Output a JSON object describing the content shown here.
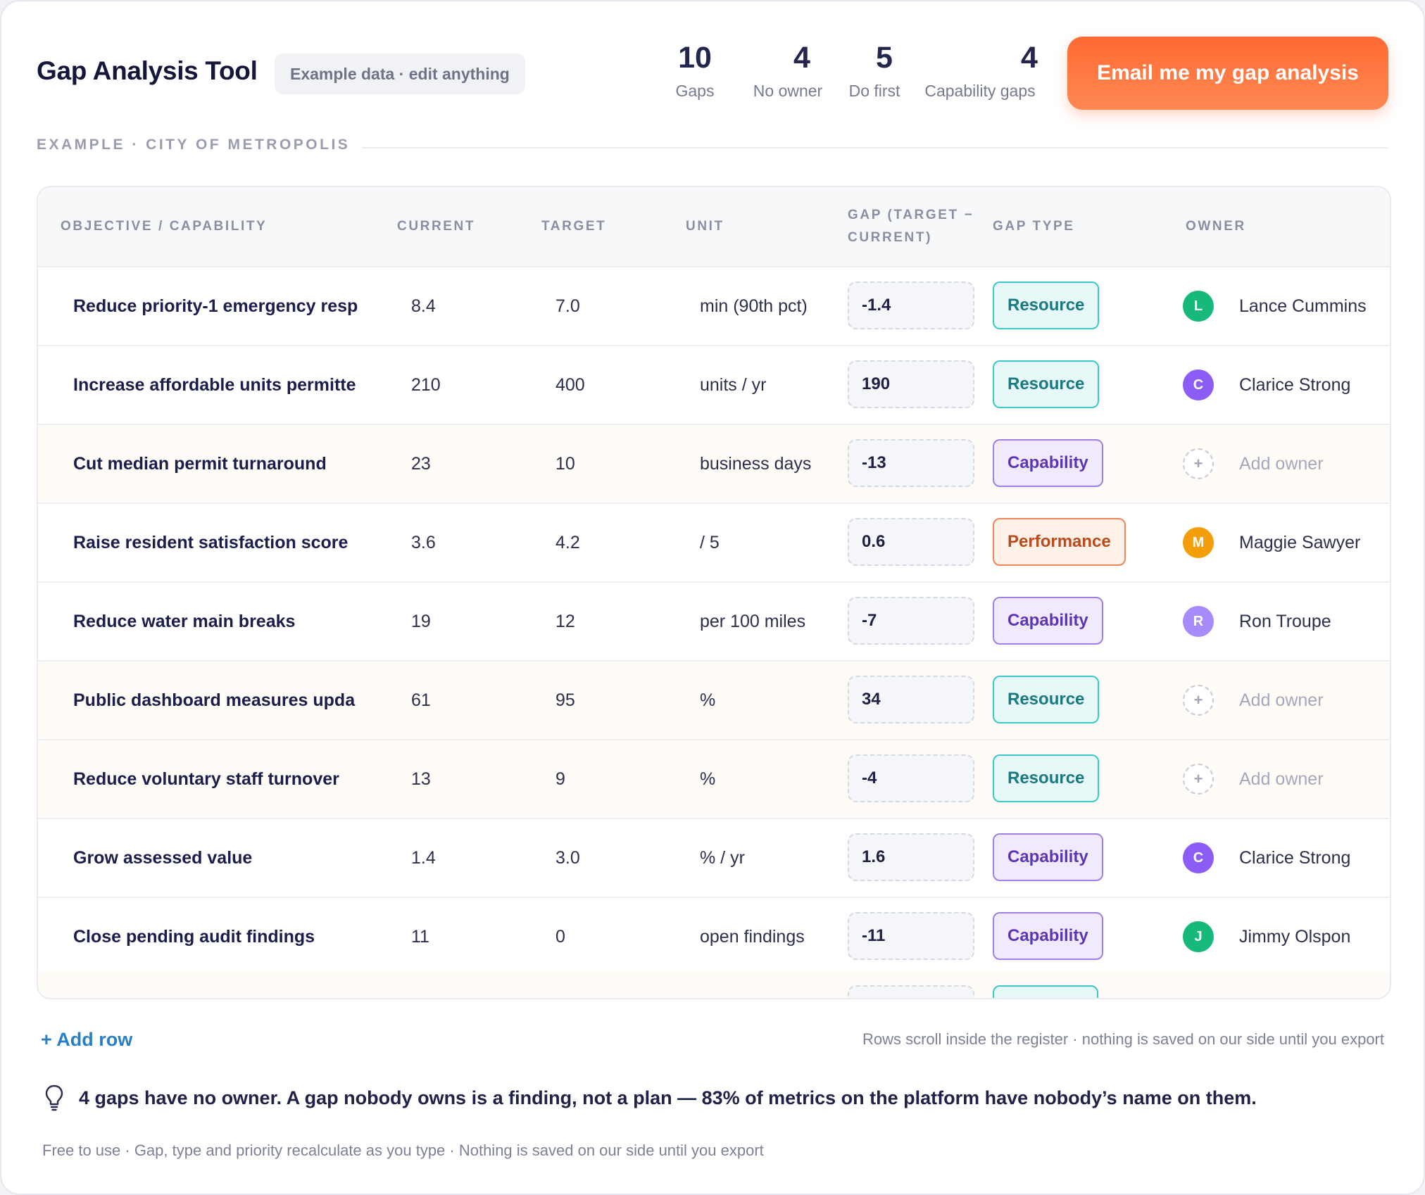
{
  "header": {
    "title": "Gap Analysis Tool",
    "pill": "Example data · edit anything",
    "stats": [
      {
        "num": "10",
        "label": "Gaps"
      },
      {
        "num": "4",
        "label": "No owner"
      },
      {
        "num": "5",
        "label": "Do first"
      },
      {
        "num": "4",
        "label": "Capability gaps"
      }
    ],
    "email_button": "Email me my gap analysis"
  },
  "section_label": "EXAMPLE · CITY OF METROPOLIS",
  "table": {
    "columns": {
      "objective": "OBJECTIVE / CAPABILITY",
      "current": "CURRENT",
      "target": "TARGET",
      "unit": "UNIT",
      "gap_line1": "GAP (TARGET −",
      "gap_line2": "CURRENT)",
      "gap_type": "GAP TYPE",
      "owner": "OWNER"
    },
    "rows": [
      {
        "objective": "Reduce priority-1 emergency resp",
        "current": "8.4",
        "target": "7.0",
        "unit": "min (90th pct)",
        "gap": "-1.4",
        "type": "Resource",
        "owner": "Lance Cummins",
        "initial": "L",
        "avatar_color": "#16b97a"
      },
      {
        "objective": "Increase affordable units permitte",
        "current": "210",
        "target": "400",
        "unit": "units / yr",
        "gap": "190",
        "type": "Resource",
        "owner": "Clarice Strong",
        "initial": "C",
        "avatar_color": "#8b5cf6"
      },
      {
        "objective": "Cut median permit turnaround",
        "current": "23",
        "target": "10",
        "unit": "business days",
        "gap": "-13",
        "type": "Capability",
        "owner": "Add owner",
        "initial": "+",
        "avatar_color": ""
      },
      {
        "objective": "Raise resident satisfaction score",
        "current": "3.6",
        "target": "4.2",
        "unit": "/ 5",
        "gap": "0.6",
        "type": "Performance",
        "owner": "Maggie Sawyer",
        "initial": "M",
        "avatar_color": "#f59e0b"
      },
      {
        "objective": "Reduce water main breaks",
        "current": "19",
        "target": "12",
        "unit": "per 100 miles",
        "gap": "-7",
        "type": "Capability",
        "owner": "Ron Troupe",
        "initial": "R",
        "avatar_color": "#a78bfa"
      },
      {
        "objective": "Public dashboard measures upda",
        "current": "61",
        "target": "95",
        "unit": "%",
        "gap": "34",
        "type": "Resource",
        "owner": "Add owner",
        "initial": "+",
        "avatar_color": ""
      },
      {
        "objective": "Reduce voluntary staff turnover",
        "current": "13",
        "target": "9",
        "unit": "%",
        "gap": "-4",
        "type": "Resource",
        "owner": "Add owner",
        "initial": "+",
        "avatar_color": ""
      },
      {
        "objective": "Grow assessed value",
        "current": "1.4",
        "target": "3.0",
        "unit": "% / yr",
        "gap": "1.6",
        "type": "Capability",
        "owner": "Clarice Strong",
        "initial": "C",
        "avatar_color": "#8b5cf6"
      },
      {
        "objective": "Close pending audit findings",
        "current": "11",
        "target": "0",
        "unit": "open findings",
        "gap": "-11",
        "type": "Capability",
        "owner": "Jimmy Olspon",
        "initial": "J",
        "avatar_color": "#16b97a"
      }
    ]
  },
  "footer": {
    "add_row": "+ Add row",
    "scroll_note": "Rows scroll inside the register · nothing is saved on our side until you export",
    "insight": "4 gaps have no owner. A gap nobody owns is a finding, not a plan — 83% of metrics on the platform have nobody’s name on them.",
    "fine_print": "Free to use · Gap, type and priority recalculate as you type · Nothing is saved on our side until you export"
  }
}
